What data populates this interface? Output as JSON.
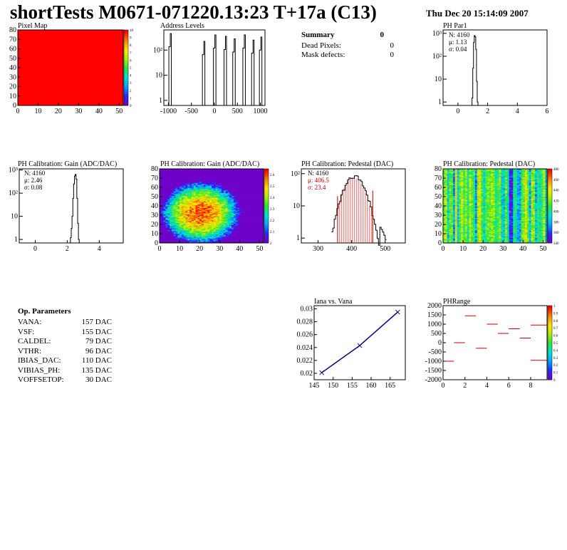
{
  "header": {
    "title": "shortTests M0671-071220.13:23 T+17a (C13)",
    "date": "Thu Dec 20 15:14:09 2007"
  },
  "summary": {
    "title": "Summary",
    "title_value": "0",
    "rows": [
      {
        "label": "Dead Pixels:",
        "value": "0"
      },
      {
        "label": "Mask defects:",
        "value": "0"
      }
    ]
  },
  "op_params": {
    "title": "Op. Parameters",
    "rows": [
      {
        "label": "VANA:",
        "value": "157 DAC"
      },
      {
        "label": "VSF:",
        "value": "155 DAC"
      },
      {
        "label": "CALDEL:",
        "value": "79 DAC"
      },
      {
        "label": "VTHR:",
        "value": "96 DAC"
      },
      {
        "label": "IBIAS_DAC:",
        "value": "110 DAC"
      },
      {
        "label": "VIBIAS_PH:",
        "value": "135 DAC"
      },
      {
        "label": "VOFFSETOP:",
        "value": "30 DAC"
      }
    ]
  },
  "chart_data": [
    {
      "id": "pixel-map",
      "type": "heatmap",
      "title": "Pixel Map",
      "xlim": [
        0,
        52
      ],
      "ylim": [
        0,
        80
      ],
      "xticks": [
        "0",
        "10",
        "20",
        "30",
        "40",
        "50"
      ],
      "yticks": [
        "0",
        "10",
        "20",
        "30",
        "40",
        "50",
        "60",
        "70",
        "80"
      ],
      "value_uniform": 10,
      "colorbar": {
        "min": 0,
        "max": 10,
        "ticks": [
          "0",
          "1",
          "2",
          "3",
          "4",
          "5",
          "6",
          "7",
          "8",
          "9",
          "10"
        ]
      }
    },
    {
      "id": "address-levels",
      "type": "bar",
      "title": "Address Levels",
      "scale": "log",
      "xlim": [
        -1100,
        1100
      ],
      "xticks": [
        "-1000",
        "-500",
        "0",
        "500",
        "1000"
      ],
      "yticks": [
        "1",
        "10",
        "10²"
      ],
      "peaks": [
        {
          "x": -960,
          "height": 450
        },
        {
          "x": -230,
          "height": 220
        },
        {
          "x": 10,
          "height": 400
        },
        {
          "x": 240,
          "height": 350
        },
        {
          "x": 430,
          "height": 280
        },
        {
          "x": 650,
          "height": 400
        },
        {
          "x": 840,
          "height": 250
        },
        {
          "x": 1010,
          "height": 330
        }
      ]
    },
    {
      "id": "ph-par1",
      "type": "bar",
      "title": "PH Par1",
      "scale": "log",
      "xlim": [
        -1,
        6
      ],
      "xticks": [
        "0",
        "2",
        "4",
        "6"
      ],
      "yticks": [
        "1",
        "10",
        "10²",
        "10³"
      ],
      "stats": [
        {
          "label": "N: 4160"
        },
        {
          "label": "μ: 1.13"
        },
        {
          "label": "σ: 0.04"
        }
      ],
      "bins": [
        [
          0.95,
          1.5
        ],
        [
          1.0,
          30
        ],
        [
          1.05,
          400
        ],
        [
          1.1,
          800
        ],
        [
          1.15,
          700
        ],
        [
          1.2,
          200
        ],
        [
          1.25,
          8
        ],
        [
          1.3,
          1
        ]
      ]
    },
    {
      "id": "ph-gain-1d",
      "type": "bar",
      "title": "PH Calibration: Gain (ADC/DAC)",
      "scale": "log",
      "xlim": [
        -1,
        5.5
      ],
      "xticks": [
        "0",
        "2",
        "4"
      ],
      "yticks": [
        "1",
        "10",
        "10²",
        "10³"
      ],
      "stats": [
        {
          "label": "N: 4160"
        },
        {
          "label": "μ: 2.46"
        },
        {
          "label": "σ: 0.08"
        }
      ],
      "bins": [
        [
          2.2,
          1.2
        ],
        [
          2.25,
          3
        ],
        [
          2.3,
          10
        ],
        [
          2.35,
          60
        ],
        [
          2.4,
          250
        ],
        [
          2.45,
          550
        ],
        [
          2.5,
          650
        ],
        [
          2.55,
          400
        ],
        [
          2.6,
          60
        ],
        [
          2.65,
          5
        ],
        [
          2.7,
          1
        ]
      ]
    },
    {
      "id": "ph-gain-map",
      "type": "heatmap",
      "title": "PH Calibration: Gain (ADC/DAC)",
      "xlim": [
        0,
        52
      ],
      "ylim": [
        0,
        80
      ],
      "xticks": [
        "0",
        "10",
        "20",
        "30",
        "40",
        "50"
      ],
      "yticks": [
        "0",
        "10",
        "20",
        "30",
        "40",
        "50",
        "60",
        "70",
        "80"
      ],
      "colorbar": {
        "min": 2.0,
        "max": 2.65,
        "ticks": [
          "2",
          "2.1",
          "2.2",
          "2.3",
          "2.4",
          "2.5",
          "2.6"
        ]
      }
    },
    {
      "id": "ph-pedestal-1d",
      "type": "bar",
      "title": "PH Calibration: Pedestal (DAC)",
      "scale": "log",
      "xlim": [
        250,
        560
      ],
      "xticks": [
        "300",
        "400",
        "500"
      ],
      "yticks": [
        "1",
        "10",
        "10²"
      ],
      "stats": [
        {
          "label": "N: 4160"
        },
        {
          "label": "μ: 406.5"
        },
        {
          "label": "σ: 23.4"
        }
      ],
      "fit_range": [
        358,
        463
      ],
      "mean": 406.5,
      "sigma": 23.4,
      "peak": 80
    },
    {
      "id": "ph-pedestal-map",
      "type": "heatmap",
      "title": "PH Calibration: Pedestal (DAC)",
      "xlim": [
        0,
        52
      ],
      "ylim": [
        0,
        80
      ],
      "xticks": [
        "0",
        "10",
        "20",
        "30",
        "40",
        "50"
      ],
      "yticks": [
        "0",
        "10",
        "20",
        "30",
        "40",
        "50",
        "60",
        "70",
        "80"
      ],
      "colorbar": {
        "min": 340,
        "max": 480,
        "ticks": [
          "340",
          "360",
          "380",
          "400",
          "420",
          "440",
          "460",
          "480"
        ]
      }
    },
    {
      "id": "iana-vs-vana",
      "type": "line",
      "title": "Iana vs. Vana",
      "xlim": [
        145,
        169
      ],
      "ylim": [
        0.019,
        0.0305
      ],
      "xticks": [
        "145",
        "150",
        "155",
        "160",
        "165"
      ],
      "yticks": [
        "0.02",
        "0.022",
        "0.024",
        "0.026",
        "0.028",
        "0.03"
      ],
      "x": [
        147,
        157,
        167
      ],
      "y": [
        0.0201,
        0.0243,
        0.0295
      ]
    },
    {
      "id": "ph-range",
      "type": "heatmap",
      "title": "PHRange",
      "xlim": [
        0,
        9.5
      ],
      "ylim": [
        -2000,
        2000
      ],
      "xticks": [
        "0",
        "2",
        "4",
        "6",
        "8"
      ],
      "yticks": [
        "-2000",
        "-1500",
        "-1000",
        "-500",
        "0",
        "500",
        "1000",
        "1500",
        "2000"
      ],
      "segments": [
        {
          "x": [
            0,
            1
          ],
          "y": -1000
        },
        {
          "x": [
            1,
            2
          ],
          "y": 0
        },
        {
          "x": [
            2,
            3
          ],
          "y": 1450
        },
        {
          "x": [
            3,
            4
          ],
          "y": -300
        },
        {
          "x": [
            4,
            5
          ],
          "y": 1000
        },
        {
          "x": [
            5,
            6
          ],
          "y": 500
        },
        {
          "x": [
            6,
            7
          ],
          "y": 750
        },
        {
          "x": [
            7,
            8
          ],
          "y": 250
        },
        {
          "x": [
            8,
            9.5
          ],
          "y": 950
        },
        {
          "x": [
            8,
            9.5
          ],
          "y": -950
        }
      ],
      "colorbar": {
        "min": 0,
        "max": 1,
        "ticks": [
          "0",
          "0.1",
          "0.2",
          "0.3",
          "0.4",
          "0.5",
          "0.6",
          "0.7",
          "0.8",
          "0.9",
          "1"
        ]
      }
    }
  ],
  "colors": {
    "line": "#000080",
    "fit": "#cc0000",
    "pixel_on": "#ff0000"
  }
}
